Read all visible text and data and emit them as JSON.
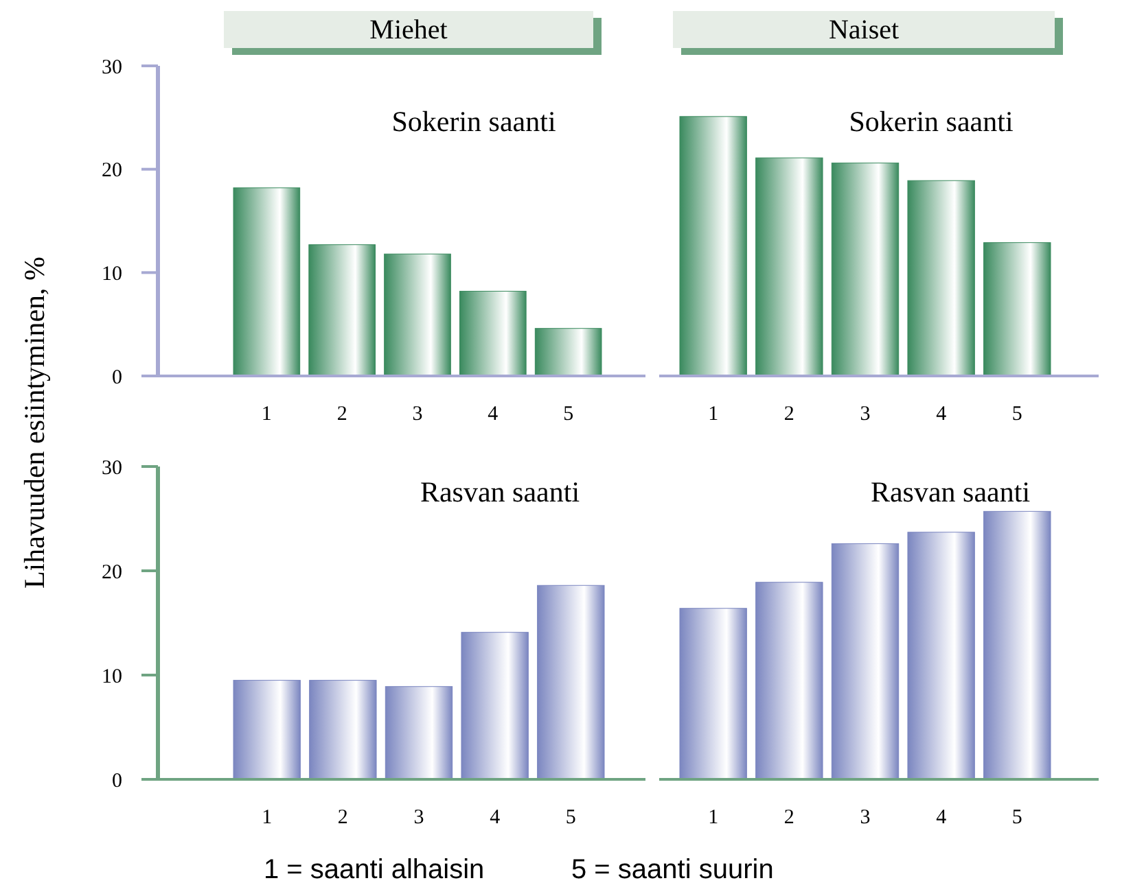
{
  "chart_data": [
    {
      "type": "bar",
      "title": "Miehet",
      "subtitle": "Sokerin saanti",
      "ylabel": "Lihavuuden esiintyminen, %",
      "categories": [
        "1",
        "2",
        "3",
        "4",
        "5"
      ],
      "values": [
        18.2,
        12.7,
        11.8,
        8.2,
        4.6
      ],
      "color": "#3a8a5e",
      "ylim": [
        0,
        30
      ],
      "yticks": [
        0,
        10,
        20,
        30
      ]
    },
    {
      "type": "bar",
      "title": "Naiset",
      "subtitle": "Sokerin saanti",
      "categories": [
        "1",
        "2",
        "3",
        "4",
        "5"
      ],
      "values": [
        25.1,
        21.1,
        20.6,
        18.9,
        12.9
      ],
      "color": "#3a8a5e",
      "ylim": [
        0,
        30
      ],
      "tick_labels": "x"
    },
    {
      "type": "bar",
      "subtitle": "Rasvan saanti",
      "categories": [
        "1",
        "2",
        "3",
        "4",
        "5"
      ],
      "values": [
        9.5,
        9.5,
        8.9,
        14.1,
        18.6
      ],
      "color": "#7b86c0",
      "ylim": [
        0,
        30
      ],
      "yticks": [
        0,
        10,
        20,
        30
      ]
    },
    {
      "type": "bar",
      "subtitle": "Rasvan saanti",
      "categories": [
        "1",
        "2",
        "3",
        "4",
        "5"
      ],
      "values": [
        16.4,
        18.9,
        22.6,
        23.7,
        25.7
      ],
      "color": "#7b86c0",
      "ylim": [
        0,
        30
      ],
      "tick_labels": "x",
      "annotations": [
        "1 = saanti alhaisin",
        "5 = saanti suurin"
      ]
    }
  ]
}
